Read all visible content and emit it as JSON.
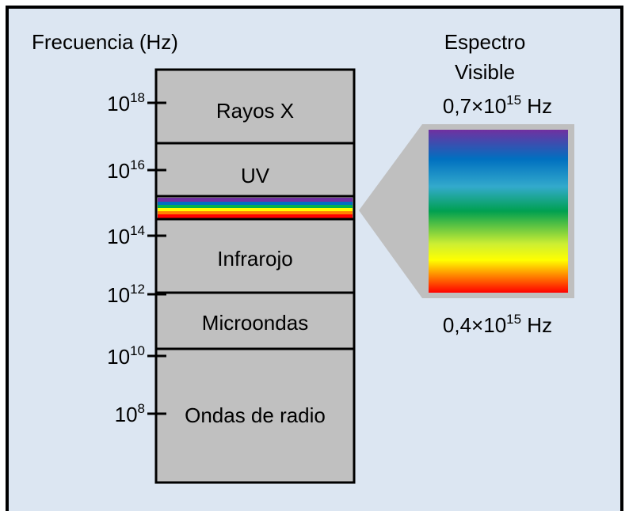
{
  "axis_label": "Frecuencia (Hz)",
  "ticks": [
    {
      "base": "10",
      "exp": "18"
    },
    {
      "base": "10",
      "exp": "16"
    },
    {
      "base": "10",
      "exp": "14"
    },
    {
      "base": "10",
      "exp": "12"
    },
    {
      "base": "10",
      "exp": "10"
    },
    {
      "base": "10",
      "exp": "8"
    }
  ],
  "regions": [
    "Rayos X",
    "UV",
    "Infrarojo",
    "Microondas",
    "Ondas de radio"
  ],
  "visible": {
    "title_line1": "Espectro",
    "title_line2": "Visible",
    "top": {
      "mantissa": "0,7×10",
      "exp": "15",
      "unit": " Hz"
    },
    "bottom": {
      "mantissa": "0,4×10",
      "exp": "15",
      "unit": " Hz"
    }
  }
}
